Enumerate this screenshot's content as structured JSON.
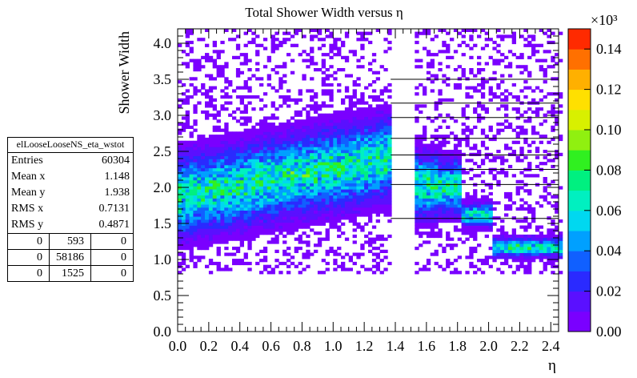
{
  "chart_data": {
    "type": "heatmap",
    "title": "Total Shower Width versus η",
    "xlabel": "η",
    "ylabel": "Shower Width",
    "xlim": [
      0.0,
      2.45
    ],
    "ylim": [
      0.0,
      4.2
    ],
    "x_ticks": [
      "0.0",
      "0.2",
      "0.4",
      "0.6",
      "0.8",
      "1.0",
      "1.2",
      "1.4",
      "1.6",
      "1.8",
      "2.0",
      "2.2",
      "2.4"
    ],
    "y_ticks": [
      "0.0",
      "0.5",
      "1.0",
      "1.5",
      "2.0",
      "2.5",
      "3.0",
      "3.5",
      "4.0"
    ],
    "colorbar": {
      "range": [
        0,
        0.15
      ],
      "multiplier": "×10³",
      "ticks": [
        "0.00",
        "0.02",
        "0.04",
        "0.06",
        "0.08",
        "0.10",
        "0.12",
        "0.14"
      ],
      "colors": [
        "#7a00ff",
        "#5a10ff",
        "#2a2aff",
        "#1060ff",
        "#00a0ff",
        "#00d8f0",
        "#00f0c0",
        "#00f080",
        "#30f020",
        "#90f010",
        "#d8f000",
        "#ffe000",
        "#ffb000",
        "#ff7000",
        "#ff2a00"
      ]
    },
    "grid": "horizontal lines on right part",
    "hline_y": [
      1.57,
      2.04,
      2.25,
      2.45,
      2.68,
      2.97,
      3.17,
      3.5
    ],
    "regions": [
      {
        "eta": [
          0.0,
          1.37
        ],
        "peak_y": [
          1.85,
          2.0,
          2.15,
          2.3,
          2.4
        ],
        "width": 0.45
      },
      {
        "eta": [
          1.52,
          1.65
        ],
        "peak_y": [
          2.0
        ],
        "width": 0.35
      },
      {
        "eta": [
          1.65,
          1.8
        ],
        "peak_y": [
          2.0
        ],
        "width": 0.3
      },
      {
        "eta": [
          1.8,
          2.0
        ],
        "peak_y": [
          1.6
        ],
        "width": 0.12
      },
      {
        "eta": [
          2.0,
          2.47
        ],
        "peak_y": [
          1.15
        ],
        "width": 0.1
      }
    ]
  },
  "stats": {
    "name": "elLooseLooseNS_eta_wstot",
    "rows": [
      {
        "label": "Entries",
        "value": "60304"
      },
      {
        "label": "Mean x",
        "value": "1.148"
      },
      {
        "label": "Mean y",
        "value": "1.938"
      },
      {
        "label": "RMS x",
        "value": "0.7131"
      },
      {
        "label": "RMS y",
        "value": "0.4871"
      }
    ],
    "grid": [
      [
        "0",
        "593",
        "0"
      ],
      [
        "0",
        "58186",
        "0"
      ],
      [
        "0",
        "1525",
        "0"
      ]
    ]
  }
}
